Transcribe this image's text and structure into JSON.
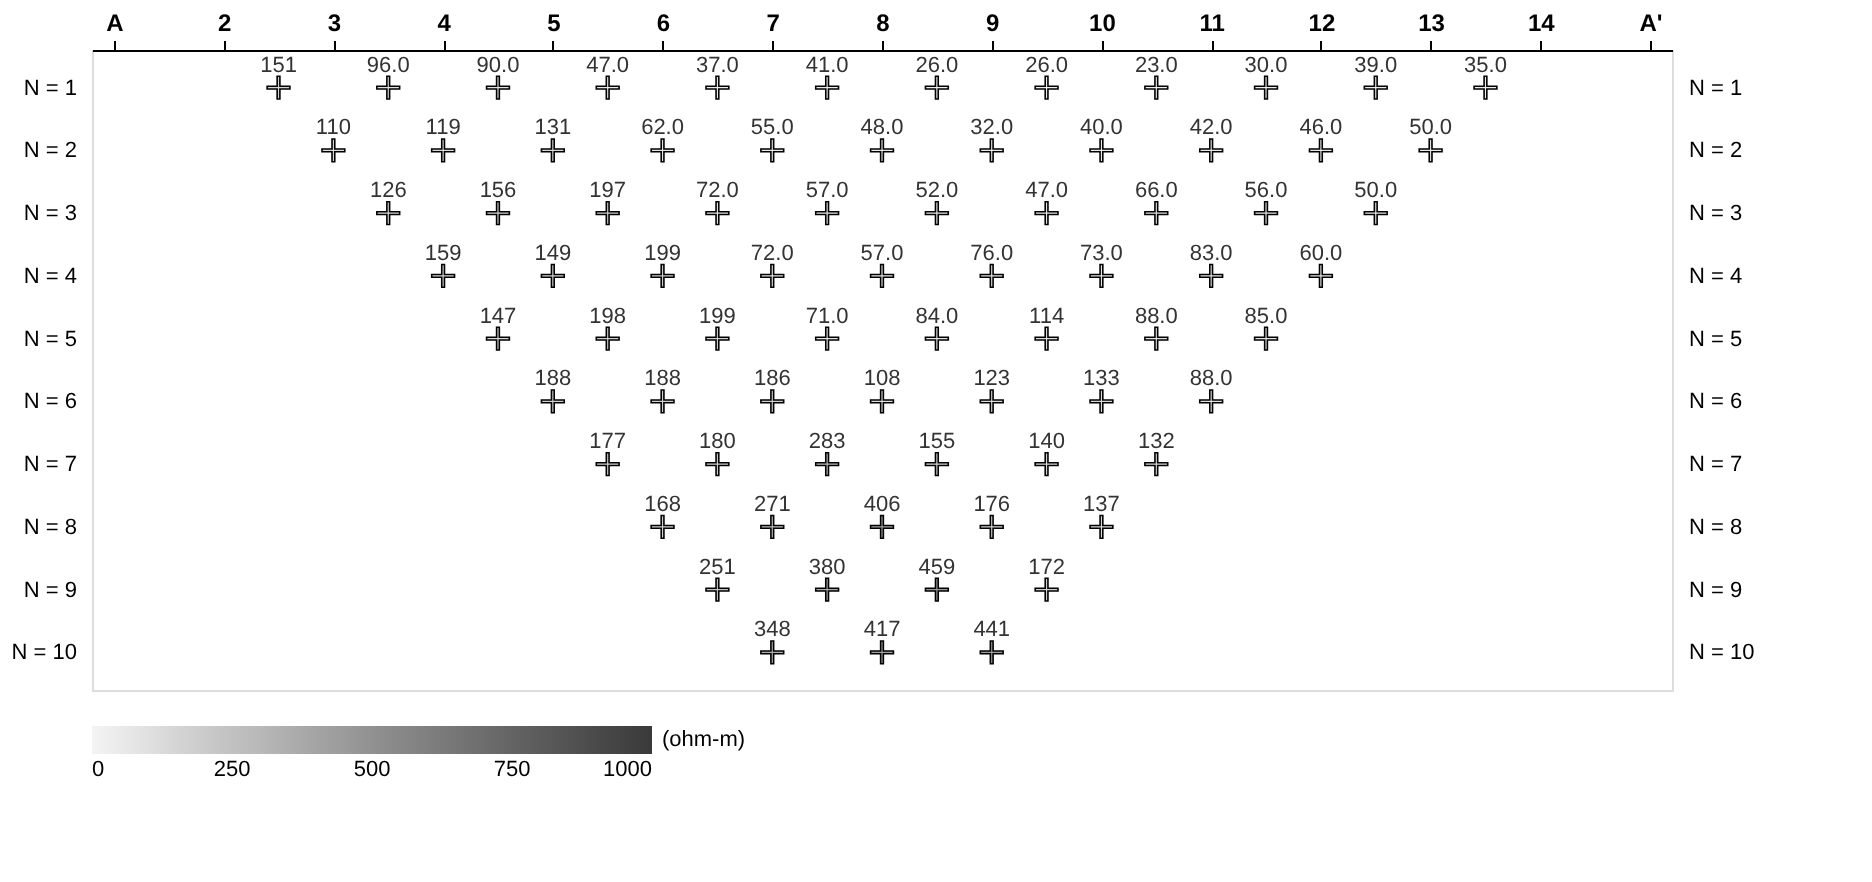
{
  "chart_data": {
    "type": "scatter",
    "clabel": "(ohm-m)",
    "marker": "cross",
    "grid": false,
    "xlim": [
      0.8,
      15.2
    ],
    "xticks": [
      {
        "value": 1,
        "label": "A"
      },
      2,
      3,
      4,
      5,
      6,
      7,
      8,
      9,
      10,
      11,
      12,
      13,
      14,
      {
        "value": 15,
        "label": "A'"
      }
    ],
    "ylim": [
      10.6,
      0.4
    ],
    "yticks": [
      {
        "value": 1,
        "label": "N = 1"
      },
      {
        "value": 2,
        "label": "N = 2"
      },
      {
        "value": 3,
        "label": "N = 3"
      },
      {
        "value": 4,
        "label": "N = 4"
      },
      {
        "value": 5,
        "label": "N = 5"
      },
      {
        "value": 6,
        "label": "N = 6"
      },
      {
        "value": 7,
        "label": "N = 7"
      },
      {
        "value": 8,
        "label": "N = 8"
      },
      {
        "value": 9,
        "label": "N = 9"
      },
      {
        "value": 10,
        "label": "N = 10"
      }
    ],
    "y2lim": [
      10.6,
      0.4
    ],
    "y2ticks": [
      {
        "value": 1,
        "label": "N = 1"
      },
      {
        "value": 2,
        "label": "N = 2"
      },
      {
        "value": 3,
        "label": "N = 3"
      },
      {
        "value": 4,
        "label": "N = 4"
      },
      {
        "value": 5,
        "label": "N = 5"
      },
      {
        "value": 6,
        "label": "N = 6"
      },
      {
        "value": 7,
        "label": "N = 7"
      },
      {
        "value": 8,
        "label": "N = 8"
      },
      {
        "value": 9,
        "label": "N = 9"
      },
      {
        "value": 10,
        "label": "N = 10"
      }
    ],
    "clim": [
      0,
      1000
    ],
    "cticks": [
      0,
      250,
      500,
      750,
      1000
    ],
    "series": [
      {
        "x": [
          2.5,
          3.5,
          4.5,
          5.5,
          6.5,
          7.5,
          8.5,
          9.5,
          10.5,
          11.5,
          12.5,
          13.5,
          3,
          4,
          5,
          6,
          7,
          8,
          9,
          10,
          11,
          12,
          13,
          3.5,
          4.5,
          5.5,
          6.5,
          7.5,
          8.5,
          9.5,
          10.5,
          11.5,
          12.5,
          4,
          5,
          6,
          7,
          8,
          9,
          10,
          11,
          12,
          4.5,
          5.5,
          6.5,
          7.5,
          8.5,
          9.5,
          10.5,
          11.5,
          5,
          6,
          7,
          8,
          9,
          10,
          11,
          5.5,
          6.5,
          7.5,
          8.5,
          9.5,
          10.5,
          6,
          7,
          8,
          9,
          10,
          6.5,
          7.5,
          8.5,
          9.5,
          7,
          8,
          9
        ],
        "values": [
          1,
          1,
          1,
          1,
          1,
          1,
          1,
          1,
          1,
          1,
          1,
          1,
          2,
          2,
          2,
          2,
          2,
          2,
          2,
          2,
          2,
          2,
          2,
          3,
          3,
          3,
          3,
          3,
          3,
          3,
          3,
          3,
          3,
          4,
          4,
          4,
          4,
          4,
          4,
          4,
          4,
          4,
          5,
          5,
          5,
          5,
          5,
          5,
          5,
          5,
          6,
          6,
          6,
          6,
          6,
          6,
          6,
          7,
          7,
          7,
          7,
          7,
          7,
          8,
          8,
          8,
          8,
          8,
          9,
          9,
          9,
          9,
          10,
          10,
          10
        ],
        "cvalues": [
          151,
          96,
          90,
          47,
          37,
          41,
          26,
          26,
          23,
          30,
          39,
          35,
          110,
          119,
          131,
          62,
          55,
          48,
          32,
          40,
          42,
          46,
          50,
          126,
          156,
          197,
          72,
          57,
          52,
          47,
          66,
          56,
          50,
          159,
          149,
          199,
          72,
          57,
          76,
          73,
          83,
          60,
          147,
          198,
          199,
          71,
          84,
          114,
          88,
          85,
          188,
          188,
          186,
          108,
          123,
          133,
          88,
          177,
          180,
          283,
          155,
          140,
          132,
          168,
          271,
          406,
          176,
          137,
          251,
          380,
          459,
          172,
          348,
          417,
          441
        ]
      }
    ],
    "annotations": [
      {
        "text": "151",
        "x": 2.5,
        "y": 1
      },
      {
        "text": "96.0",
        "x": 3.5,
        "y": 1
      },
      {
        "text": "90.0",
        "x": 4.5,
        "y": 1
      },
      {
        "text": "47.0",
        "x": 5.5,
        "y": 1
      },
      {
        "text": "37.0",
        "x": 6.5,
        "y": 1
      },
      {
        "text": "41.0",
        "x": 7.5,
        "y": 1
      },
      {
        "text": "26.0",
        "x": 8.5,
        "y": 1
      },
      {
        "text": "26.0",
        "x": 9.5,
        "y": 1
      },
      {
        "text": "23.0",
        "x": 10.5,
        "y": 1
      },
      {
        "text": "30.0",
        "x": 11.5,
        "y": 1
      },
      {
        "text": "39.0",
        "x": 12.5,
        "y": 1
      },
      {
        "text": "35.0",
        "x": 13.5,
        "y": 1
      },
      {
        "text": "110",
        "x": 3,
        "y": 2
      },
      {
        "text": "119",
        "x": 4,
        "y": 2
      },
      {
        "text": "131",
        "x": 5,
        "y": 2
      },
      {
        "text": "62.0",
        "x": 6,
        "y": 2
      },
      {
        "text": "55.0",
        "x": 7,
        "y": 2
      },
      {
        "text": "48.0",
        "x": 8,
        "y": 2
      },
      {
        "text": "32.0",
        "x": 9,
        "y": 2
      },
      {
        "text": "40.0",
        "x": 10,
        "y": 2
      },
      {
        "text": "42.0",
        "x": 11,
        "y": 2
      },
      {
        "text": "46.0",
        "x": 12,
        "y": 2
      },
      {
        "text": "50.0",
        "x": 13,
        "y": 2
      },
      {
        "text": "126",
        "x": 3.5,
        "y": 3
      },
      {
        "text": "156",
        "x": 4.5,
        "y": 3
      },
      {
        "text": "197",
        "x": 5.5,
        "y": 3
      },
      {
        "text": "72.0",
        "x": 6.5,
        "y": 3
      },
      {
        "text": "57.0",
        "x": 7.5,
        "y": 3
      },
      {
        "text": "52.0",
        "x": 8.5,
        "y": 3
      },
      {
        "text": "47.0",
        "x": 9.5,
        "y": 3
      },
      {
        "text": "66.0",
        "x": 10.5,
        "y": 3
      },
      {
        "text": "56.0",
        "x": 11.5,
        "y": 3
      },
      {
        "text": "50.0",
        "x": 12.5,
        "y": 3
      },
      {
        "text": "159",
        "x": 4,
        "y": 4
      },
      {
        "text": "149",
        "x": 5,
        "y": 4
      },
      {
        "text": "199",
        "x": 6,
        "y": 4
      },
      {
        "text": "72.0",
        "x": 7,
        "y": 4
      },
      {
        "text": "57.0",
        "x": 8,
        "y": 4
      },
      {
        "text": "76.0",
        "x": 9,
        "y": 4
      },
      {
        "text": "73.0",
        "x": 10,
        "y": 4
      },
      {
        "text": "83.0",
        "x": 11,
        "y": 4
      },
      {
        "text": "60.0",
        "x": 12,
        "y": 4
      },
      {
        "text": "147",
        "x": 4.5,
        "y": 5
      },
      {
        "text": "198",
        "x": 5.5,
        "y": 5
      },
      {
        "text": "199",
        "x": 6.5,
        "y": 5
      },
      {
        "text": "71.0",
        "x": 7.5,
        "y": 5
      },
      {
        "text": "84.0",
        "x": 8.5,
        "y": 5
      },
      {
        "text": "114",
        "x": 9.5,
        "y": 5
      },
      {
        "text": "88.0",
        "x": 10.5,
        "y": 5
      },
      {
        "text": "85.0",
        "x": 11.5,
        "y": 5
      },
      {
        "text": "188",
        "x": 5,
        "y": 6
      },
      {
        "text": "188",
        "x": 6,
        "y": 6
      },
      {
        "text": "186",
        "x": 7,
        "y": 6
      },
      {
        "text": "108",
        "x": 8,
        "y": 6
      },
      {
        "text": "123",
        "x": 9,
        "y": 6
      },
      {
        "text": "133",
        "x": 10,
        "y": 6
      },
      {
        "text": "88.0",
        "x": 11,
        "y": 6
      },
      {
        "text": "177",
        "x": 5.5,
        "y": 7
      },
      {
        "text": "180",
        "x": 6.5,
        "y": 7
      },
      {
        "text": "283",
        "x": 7.5,
        "y": 7
      },
      {
        "text": "155",
        "x": 8.5,
        "y": 7
      },
      {
        "text": "140",
        "x": 9.5,
        "y": 7
      },
      {
        "text": "132",
        "x": 10.5,
        "y": 7
      },
      {
        "text": "168",
        "x": 6,
        "y": 8
      },
      {
        "text": "271",
        "x": 7,
        "y": 8
      },
      {
        "text": "406",
        "x": 8,
        "y": 8
      },
      {
        "text": "176",
        "x": 9,
        "y": 8
      },
      {
        "text": "137",
        "x": 10,
        "y": 8
      },
      {
        "text": "251",
        "x": 6.5,
        "y": 9
      },
      {
        "text": "380",
        "x": 7.5,
        "y": 9
      },
      {
        "text": "459",
        "x": 8.5,
        "y": 9
      },
      {
        "text": "172",
        "x": 9.5,
        "y": 9
      },
      {
        "text": "348",
        "x": 7,
        "y": 10
      },
      {
        "text": "417",
        "x": 8,
        "y": 10
      },
      {
        "text": "441",
        "x": 9,
        "y": 10
      }
    ]
  }
}
